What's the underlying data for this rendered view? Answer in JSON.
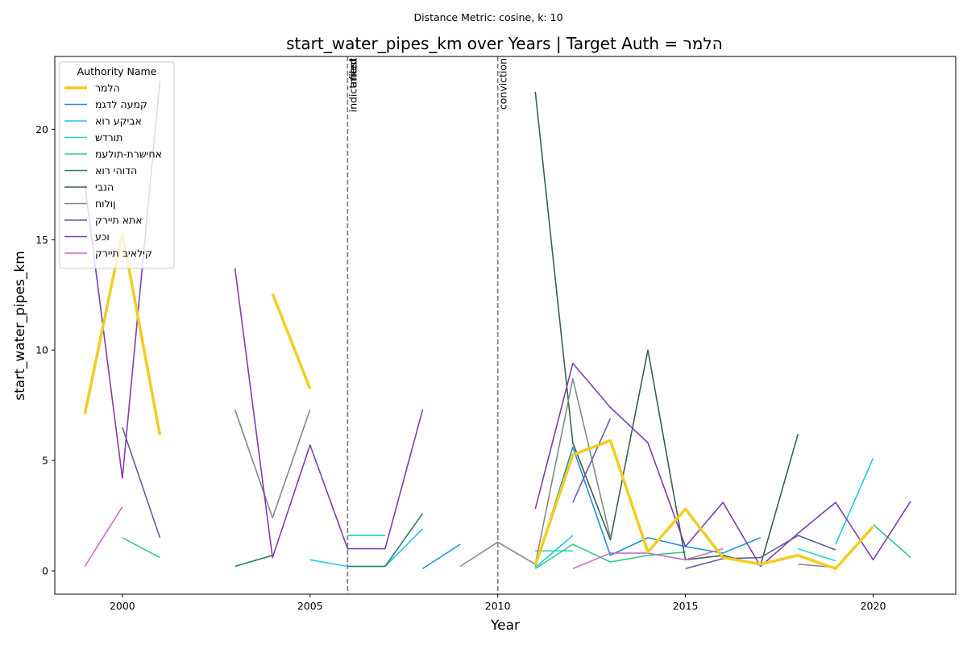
{
  "chart_data": {
    "type": "line",
    "suptitle": "Distance Metric: cosine, k: 10",
    "title": "start_water_pipes_km over Years | Target Auth = הלמר",
    "xlabel": "Year",
    "ylabel": "start_water_pipes_km",
    "xlim": [
      1998.2,
      2022.2
    ],
    "ylim": [
      -1.06,
      23.3
    ],
    "xticks": [
      2000,
      2005,
      2010,
      2015,
      2020
    ],
    "yticks": [
      0,
      5,
      10,
      15,
      20
    ],
    "grid": false,
    "legend": {
      "title": "Authority Name",
      "placement": "top-left"
    },
    "events": [
      {
        "x": 2006,
        "labels": [
          "indictment",
          "arrest",
          "filed"
        ]
      },
      {
        "x": 2010,
        "labels": [
          "conviction"
        ]
      }
    ],
    "series": [
      {
        "name": "הלמר",
        "color": "#f2cd1f",
        "target": true,
        "points": [
          [
            1999,
            7.1
          ],
          [
            2000,
            15.3
          ],
          [
            2001,
            6.15
          ],
          [
            2002,
            null
          ],
          [
            2003,
            null
          ],
          [
            2004,
            12.55
          ],
          [
            2005,
            8.25
          ],
          [
            2006,
            null
          ],
          [
            2007,
            null
          ],
          [
            2008,
            null
          ],
          [
            2009,
            null
          ],
          [
            2010,
            null
          ],
          [
            2011,
            0.25
          ],
          [
            2012,
            5.25
          ],
          [
            2013,
            5.9
          ],
          [
            2014,
            0.85
          ],
          [
            2015,
            2.8
          ],
          [
            2016,
            0.6
          ],
          [
            2017,
            0.3
          ],
          [
            2018,
            0.7
          ],
          [
            2019,
            0.1
          ],
          [
            2020,
            2.0
          ]
        ]
      },
      {
        "name": "קמעה לדגמ",
        "color": "#1f8fdb",
        "points": [
          [
            2008,
            0.1
          ],
          [
            2009,
            1.2
          ],
          [
            2010,
            null
          ],
          [
            2011,
            0.2
          ],
          [
            2012,
            5.6
          ],
          [
            2013,
            0.7
          ],
          [
            2014,
            1.5
          ],
          [
            2015,
            1.1
          ],
          [
            2016,
            0.8
          ],
          [
            2017,
            1.5
          ]
        ]
      },
      {
        "name": "אביקע רוא",
        "color": "#1ec9e6",
        "points": [
          [
            2005,
            0.5
          ],
          [
            2006,
            0.2
          ],
          [
            2007,
            0.2
          ],
          [
            2008,
            1.9
          ],
          [
            2009,
            null
          ],
          [
            2010,
            null
          ],
          [
            2011,
            0.15
          ],
          [
            2012,
            1.6
          ],
          [
            2013,
            null
          ],
          [
            2014,
            null
          ],
          [
            2015,
            null
          ],
          [
            2016,
            null
          ],
          [
            2017,
            null
          ],
          [
            2018,
            null
          ],
          [
            2019,
            1.2
          ],
          [
            2020,
            5.1
          ]
        ]
      },
      {
        "name": "תורדש",
        "color": "#1fd9c0",
        "points": [
          [
            2006,
            1.6
          ],
          [
            2007,
            1.6
          ],
          [
            2008,
            null
          ],
          [
            2009,
            null
          ],
          [
            2010,
            null
          ],
          [
            2011,
            0.9
          ],
          [
            2012,
            0.9
          ],
          [
            2013,
            null
          ],
          [
            2014,
            null
          ],
          [
            2015,
            null
          ],
          [
            2016,
            null
          ],
          [
            2017,
            null
          ],
          [
            2018,
            1.0
          ],
          [
            2019,
            0.45
          ]
        ]
      },
      {
        "name": "אחישרת-תולעמ",
        "color": "#2ecc8a",
        "points": [
          [
            2000,
            1.5
          ],
          [
            2001,
            0.6
          ],
          [
            2002,
            null
          ],
          [
            2003,
            null
          ],
          [
            2004,
            null
          ],
          [
            2005,
            null
          ],
          [
            2006,
            null
          ],
          [
            2007,
            null
          ],
          [
            2008,
            null
          ],
          [
            2009,
            null
          ],
          [
            2010,
            null
          ],
          [
            2011,
            0.1
          ],
          [
            2012,
            1.2
          ],
          [
            2013,
            0.4
          ],
          [
            2014,
            0.7
          ],
          [
            2015,
            0.85
          ],
          [
            2016,
            null
          ],
          [
            2017,
            null
          ],
          [
            2018,
            null
          ],
          [
            2019,
            null
          ],
          [
            2020,
            2.1
          ],
          [
            2021,
            0.6
          ]
        ]
      },
      {
        "name": "הדוהי רוא",
        "color": "#2e7d5e",
        "points": [
          [
            2003,
            0.2
          ],
          [
            2004,
            0.7
          ],
          [
            2005,
            null
          ],
          [
            2006,
            0.2
          ],
          [
            2007,
            0.2
          ],
          [
            2008,
            2.6
          ]
        ]
      },
      {
        "name": "הנבי",
        "color": "#3d5f52",
        "points": [
          [
            2011,
            21.7
          ],
          [
            2012,
            5.8
          ],
          [
            2013,
            1.4
          ],
          [
            2014,
            10.0
          ],
          [
            2015,
            0.5
          ],
          [
            2016,
            0.7
          ],
          [
            2017,
            0.25
          ],
          [
            2018,
            6.2
          ]
        ]
      },
      {
        "name": "ןולוח",
        "color": "#7f8c86",
        "points": [
          [
            2003,
            7.3
          ],
          [
            2004,
            2.4
          ],
          [
            2005,
            7.3
          ],
          [
            2006,
            null
          ],
          [
            2007,
            null
          ],
          [
            2008,
            null
          ],
          [
            2009,
            0.2
          ],
          [
            2010,
            1.3
          ],
          [
            2011,
            0.3
          ],
          [
            2012,
            8.7
          ],
          [
            2013,
            1.5
          ],
          [
            2014,
            null
          ],
          [
            2015,
            null
          ],
          [
            2016,
            null
          ],
          [
            2017,
            null
          ],
          [
            2018,
            0.3
          ],
          [
            2019,
            0.15
          ]
        ]
      },
      {
        "name": "אתא תיירק",
        "color": "#5e5ea8",
        "points": [
          [
            2000,
            6.5
          ],
          [
            2001,
            1.5
          ],
          [
            2002,
            null
          ],
          [
            2003,
            null
          ],
          [
            2004,
            null
          ],
          [
            2005,
            null
          ],
          [
            2006,
            null
          ],
          [
            2007,
            null
          ],
          [
            2008,
            null
          ],
          [
            2009,
            null
          ],
          [
            2010,
            null
          ],
          [
            2011,
            null
          ],
          [
            2012,
            3.1
          ],
          [
            2013,
            6.9
          ],
          [
            2014,
            null
          ],
          [
            2015,
            0.1
          ],
          [
            2016,
            0.55
          ],
          [
            2017,
            0.6
          ],
          [
            2018,
            1.6
          ],
          [
            2019,
            0.95
          ]
        ]
      },
      {
        "name": "וכע",
        "color": "#7b3fb0",
        "points": [
          [
            1999,
            17.5
          ],
          [
            2000,
            4.2
          ],
          [
            2001,
            22.2
          ],
          [
            2002,
            null
          ],
          [
            2003,
            13.7
          ],
          [
            2004,
            0.6
          ],
          [
            2005,
            5.7
          ],
          [
            2006,
            1.0
          ],
          [
            2007,
            1.0
          ],
          [
            2008,
            7.3
          ],
          [
            2009,
            null
          ],
          [
            2010,
            null
          ],
          [
            2011,
            2.8
          ],
          [
            2012,
            9.4
          ],
          [
            2013,
            7.4
          ],
          [
            2014,
            5.8
          ],
          [
            2015,
            1.1
          ],
          [
            2016,
            3.1
          ],
          [
            2017,
            0.2
          ],
          [
            2018,
            1.7
          ],
          [
            2019,
            3.1
          ],
          [
            2020,
            0.5
          ],
          [
            2021,
            3.15
          ]
        ]
      },
      {
        "name": "קילאיב תיירק",
        "color": "#cc6ccc",
        "points": [
          [
            1999,
            0.2
          ],
          [
            2000,
            2.9
          ],
          [
            2001,
            null
          ],
          [
            2002,
            null
          ],
          [
            2003,
            null
          ],
          [
            2004,
            null
          ],
          [
            2005,
            null
          ],
          [
            2006,
            null
          ],
          [
            2007,
            null
          ],
          [
            2008,
            null
          ],
          [
            2009,
            null
          ],
          [
            2010,
            null
          ],
          [
            2011,
            null
          ],
          [
            2012,
            0.1
          ],
          [
            2013,
            0.8
          ],
          [
            2014,
            0.8
          ],
          [
            2015,
            0.5
          ],
          [
            2016,
            1.0
          ]
        ]
      }
    ]
  }
}
